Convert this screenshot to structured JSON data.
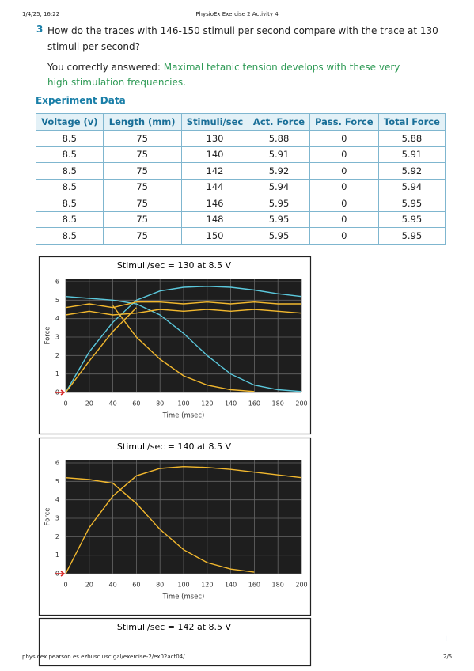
{
  "header": {
    "date": "1/4/25, 16:22",
    "title": "PhysioEx Exercise 2 Activity 4"
  },
  "question": {
    "number": "3",
    "text": "How do the traces with 146-150 stimuli per second compare with the trace at 130 stimuli per second?",
    "answer_prefix": "You correctly answered:",
    "answer": "Maximal tetanic tension develops with these very high stimulation frequencies."
  },
  "section_title": "Experiment Data",
  "table": {
    "columns": [
      "Voltage (v)",
      "Length (mm)",
      "Stimuli/sec",
      "Act. Force",
      "Pass. Force",
      "Total Force"
    ],
    "rows": [
      [
        8.5,
        75,
        130,
        5.88,
        0,
        5.88
      ],
      [
        8.5,
        75,
        140,
        5.91,
        0,
        5.91
      ],
      [
        8.5,
        75,
        142,
        5.92,
        0,
        5.92
      ],
      [
        8.5,
        75,
        144,
        5.94,
        0,
        5.94
      ],
      [
        8.5,
        75,
        146,
        5.95,
        0,
        5.95
      ],
      [
        8.5,
        75,
        148,
        5.95,
        0,
        5.95
      ],
      [
        8.5,
        75,
        150,
        5.95,
        0,
        5.95
      ]
    ]
  },
  "chart_data": [
    {
      "type": "line",
      "title": "Stimuli/sec = 130 at 8.5 V",
      "x_label": "Time (msec)",
      "y_label": "Force",
      "x": [
        0,
        20,
        40,
        60,
        80,
        100,
        120,
        140,
        160,
        180,
        200
      ],
      "xlim": [
        0,
        200
      ],
      "ylim": [
        0,
        6
      ],
      "xticks": [
        0,
        20,
        40,
        60,
        80,
        100,
        120,
        140,
        160,
        180,
        200
      ],
      "yticks": [
        0,
        1,
        2,
        3,
        4,
        5,
        6
      ],
      "grid": true,
      "series": [
        {
          "color": "#5bc8dc",
          "values": [
            0,
            2.2,
            3.8,
            5.0,
            5.5,
            5.7,
            5.75,
            5.7,
            5.55,
            5.35,
            5.2
          ]
        },
        {
          "color": "#5bc8dc",
          "values": [
            5.2,
            5.1,
            5.0,
            4.8,
            4.2,
            3.2,
            2.0,
            1.0,
            0.4,
            0.15,
            0.05
          ]
        },
        {
          "color": "#f2b82e",
          "values": [
            4.6,
            4.8,
            4.6,
            4.9,
            4.9,
            4.8,
            4.9,
            4.8,
            4.9,
            4.8,
            4.8
          ]
        },
        {
          "color": "#f2b82e",
          "values": [
            4.2,
            4.4,
            4.2,
            4.3,
            4.5,
            4.4,
            4.5,
            4.4,
            4.5,
            4.4,
            4.3
          ]
        },
        {
          "color": "#f2b82e",
          "values": [
            0,
            1.7,
            3.3,
            4.6,
            null,
            null,
            null,
            null,
            null,
            null,
            null
          ]
        },
        {
          "color": "#f2b82e",
          "values": [
            null,
            null,
            4.7,
            3.0,
            1.8,
            0.9,
            0.4,
            0.15,
            0.05,
            null,
            null
          ]
        }
      ]
    },
    {
      "type": "line",
      "title": "Stimuli/sec = 140 at 8.5 V",
      "x_label": "Time (msec)",
      "y_label": "Force",
      "x": [
        0,
        20,
        40,
        60,
        80,
        100,
        120,
        140,
        160,
        180,
        200
      ],
      "xlim": [
        0,
        200
      ],
      "ylim": [
        0,
        6
      ],
      "xticks": [
        0,
        20,
        40,
        60,
        80,
        100,
        120,
        140,
        160,
        180,
        200
      ],
      "yticks": [
        0,
        1,
        2,
        3,
        4,
        5,
        6
      ],
      "grid": true,
      "series": [
        {
          "color": "#f2b82e",
          "values": [
            5.2,
            5.1,
            4.9,
            3.8,
            2.4,
            1.3,
            0.6,
            0.25,
            0.08,
            null,
            null
          ]
        },
        {
          "color": "#f2b82e",
          "values": [
            0,
            2.5,
            4.2,
            5.3,
            5.7,
            5.8,
            5.75,
            5.65,
            5.5,
            5.35,
            5.2
          ]
        }
      ]
    },
    {
      "type": "line",
      "title": "Stimuli/sec = 142 at 8.5 V"
    }
  ],
  "footer": {
    "url": "physioex.pearson.es.ezbusc.usc.gal/exercise-2/ex02act04/",
    "page": "2/5"
  },
  "side_mark": "i"
}
